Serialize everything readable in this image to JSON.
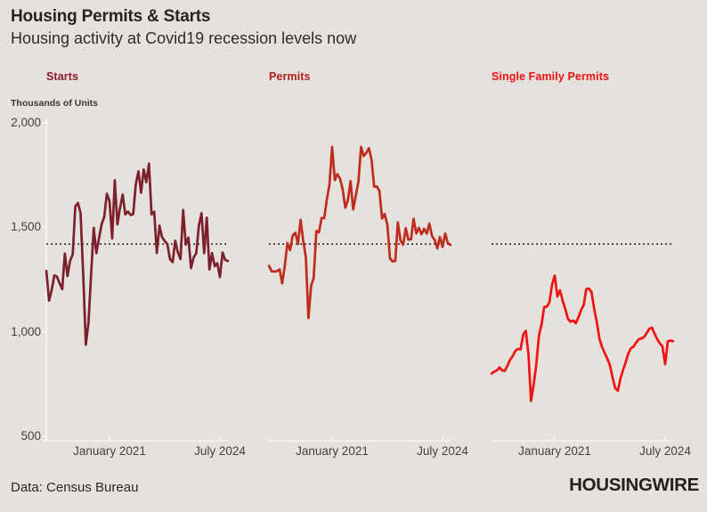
{
  "header": {
    "title": "Housing Permits & Starts",
    "subtitle": "Housing activity at Covid19 recession levels now"
  },
  "y_axis": {
    "units_label": "Thousands of Units",
    "tick_labels": [
      "2,000",
      "1,500",
      "1,000",
      "500"
    ],
    "tick_values": [
      2000,
      1500,
      1000,
      500
    ]
  },
  "x_axis": {
    "tick_labels": [
      "January 2021",
      "July 2024"
    ],
    "tick_dates": [
      "2021-01",
      "2024-07"
    ]
  },
  "footer": {
    "source": "Data: Census Bureau",
    "brand": "HOUSINGWIRE"
  },
  "colors": {
    "background": "#e5e1dc",
    "axis_line": "#f8f6f2",
    "reference_line": "#2d2b28"
  },
  "chart_data": [
    {
      "type": "line",
      "title": "Starts",
      "label_color": "#8e1b2c",
      "line_color": "#7c202e",
      "x_start": "2019-01",
      "x_end": "2024-10",
      "frequency": "monthly",
      "x_tick_labels": [
        "January 2021",
        "July 2024"
      ],
      "ylabel": "Thousands of Units",
      "ylim": [
        500,
        2000
      ],
      "reference_value": 1420,
      "values": [
        1291,
        1149,
        1199,
        1270,
        1264,
        1233,
        1204,
        1375,
        1266,
        1340,
        1371,
        1601,
        1617,
        1567,
        1269,
        938,
        1046,
        1273,
        1497,
        1376,
        1448,
        1514,
        1551,
        1661,
        1625,
        1447,
        1725,
        1514,
        1594,
        1657,
        1562,
        1576,
        1559,
        1563,
        1706,
        1768,
        1666,
        1777,
        1716,
        1805,
        1562,
        1575,
        1377,
        1508,
        1453,
        1434,
        1419,
        1348,
        1334,
        1436,
        1380,
        1348,
        1583,
        1418,
        1451,
        1305,
        1356,
        1376,
        1510,
        1568,
        1376,
        1546,
        1299,
        1377,
        1314,
        1329,
        1262,
        1379,
        1344,
        1339
      ]
    },
    {
      "type": "line",
      "title": "Permits",
      "label_color": "#b2201a",
      "line_color": "#bf2b1d",
      "x_start": "2019-01",
      "x_end": "2024-10",
      "frequency": "monthly",
      "x_tick_labels": [
        "January 2021",
        "July 2024"
      ],
      "ylabel": "Thousands of Units",
      "ylim": [
        500,
        2000
      ],
      "reference_value": 1420,
      "values": [
        1316,
        1290,
        1288,
        1290,
        1299,
        1232,
        1317,
        1425,
        1391,
        1461,
        1474,
        1420,
        1536,
        1438,
        1356,
        1066,
        1220,
        1258,
        1483,
        1476,
        1545,
        1544,
        1635,
        1704,
        1886,
        1726,
        1755,
        1733,
        1683,
        1594,
        1630,
        1721,
        1586,
        1653,
        1717,
        1885,
        1841,
        1857,
        1879,
        1823,
        1695,
        1696,
        1674,
        1542,
        1564,
        1512,
        1351,
        1337,
        1339,
        1524,
        1437,
        1417,
        1496,
        1441,
        1443,
        1541,
        1471,
        1498,
        1467,
        1493,
        1470,
        1518,
        1458,
        1440,
        1399,
        1454,
        1406,
        1470,
        1425,
        1416
      ]
    },
    {
      "type": "line",
      "title": "Single Family Permits",
      "label_color": "#ef1010",
      "line_color": "#f31111",
      "x_start": "2019-01",
      "x_end": "2024-10",
      "frequency": "monthly",
      "x_tick_labels": [
        "January 2021",
        "July 2024"
      ],
      "ylabel": "Thousands of Units",
      "ylim": [
        500,
        2000
      ],
      "reference_value": 1420,
      "values": [
        800,
        810,
        815,
        830,
        815,
        813,
        838,
        866,
        884,
        909,
        918,
        916,
        987,
        1005,
        891,
        669,
        751,
        844,
        983,
        1036,
        1119,
        1120,
        1143,
        1226,
        1269,
        1169,
        1199,
        1149,
        1110,
        1063,
        1048,
        1054,
        1041,
        1069,
        1103,
        1128,
        1205,
        1207,
        1190,
        1110,
        1048,
        967,
        928,
        899,
        872,
        839,
        781,
        730,
        718,
        777,
        818,
        855,
        897,
        922,
        930,
        949,
        965,
        968,
        976,
        994,
        1015,
        1020,
        990,
        965,
        945,
        930,
        845,
        955,
        958,
        955
      ]
    }
  ]
}
